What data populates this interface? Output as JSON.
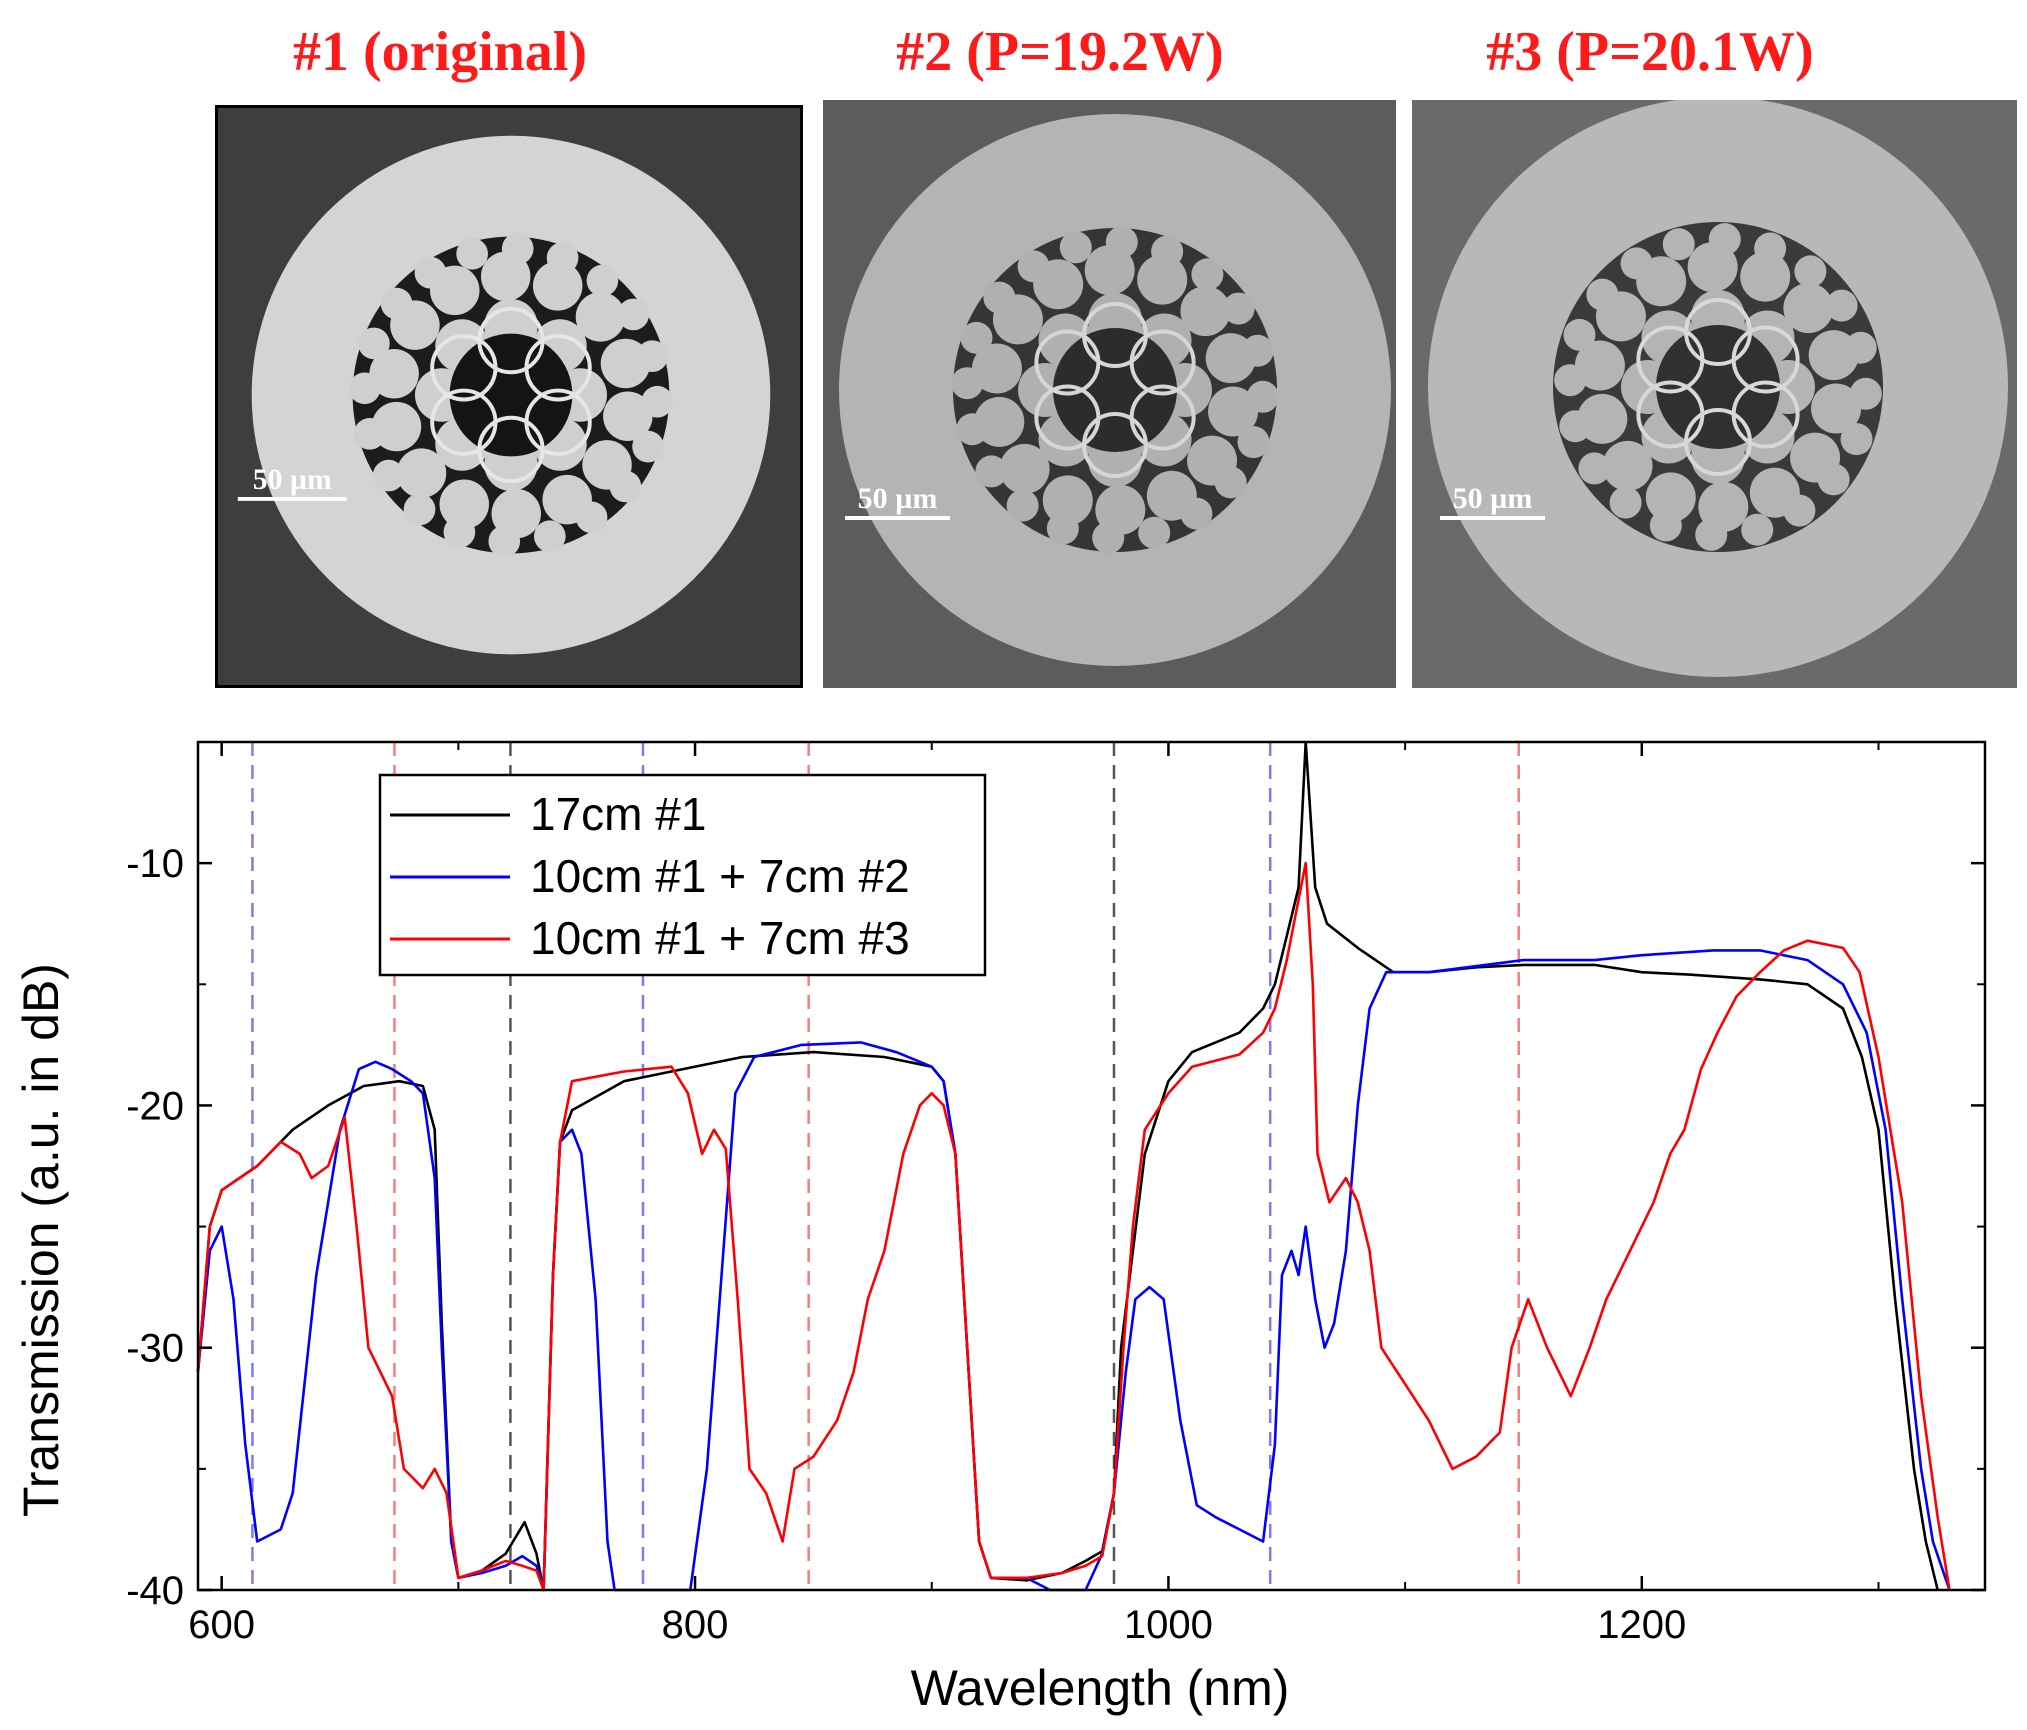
{
  "colors": {
    "title_red": "#ff1a1a",
    "black_series": "#000000",
    "blue_series": "#0000ff",
    "red_series": "#ff0000",
    "dash_blue": "#7a7aff",
    "dash_red": "#ff7a7a",
    "dash_gray": "#555555"
  },
  "panels": [
    {
      "title": "#1 (original)",
      "scalebar": "50 µm",
      "micrograph_icon": "fiber-cross-section-icon"
    },
    {
      "title": "#2 (P=19.2W)",
      "scalebar": "50 µm",
      "micrograph_icon": "fiber-cross-section-icon"
    },
    {
      "title": "#3 (P=20.1W)",
      "scalebar": "50 µm",
      "micrograph_icon": "fiber-cross-section-icon"
    }
  ],
  "chart_data": {
    "type": "line",
    "title": "",
    "xlabel": "Wavelength (nm)",
    "ylabel": "Transmission (a.u. in dB)",
    "xlim": [
      590,
      1345
    ],
    "ylim": [
      -40,
      -5
    ],
    "x_ticks": [
      600,
      800,
      1000,
      1200
    ],
    "y_ticks": [
      -10,
      -20,
      -30,
      -40
    ],
    "grid": false,
    "legend_position": "top-left",
    "legend": [
      "17cm #1",
      "10cm #1 + 7cm #2",
      "10cm #1 + 7cm #3"
    ],
    "reference_lines": [
      {
        "x": 613,
        "color": "blue"
      },
      {
        "x": 778,
        "color": "blue"
      },
      {
        "x": 1043,
        "color": "blue"
      },
      {
        "x": 673,
        "color": "red"
      },
      {
        "x": 848,
        "color": "red"
      },
      {
        "x": 1148,
        "color": "red"
      },
      {
        "x": 722,
        "color": "gray"
      },
      {
        "x": 977,
        "color": "gray"
      }
    ],
    "series": [
      {
        "name": "17cm #1",
        "color": "black",
        "points": [
          [
            590,
            -31
          ],
          [
            595,
            -25
          ],
          [
            600,
            -23.5
          ],
          [
            615,
            -22.5
          ],
          [
            630,
            -21
          ],
          [
            645,
            -20
          ],
          [
            660,
            -19.2
          ],
          [
            675,
            -19
          ],
          [
            685,
            -19.2
          ],
          [
            690,
            -21
          ],
          [
            693,
            -29
          ],
          [
            697,
            -38
          ],
          [
            700,
            -39.5
          ],
          [
            710,
            -39.2
          ],
          [
            720,
            -38.5
          ],
          [
            728,
            -37.2
          ],
          [
            733,
            -38.5
          ],
          [
            736,
            -40
          ],
          [
            740,
            -27
          ],
          [
            743,
            -21.5
          ],
          [
            748,
            -20.2
          ],
          [
            770,
            -19
          ],
          [
            790,
            -18.6
          ],
          [
            820,
            -18
          ],
          [
            850,
            -17.8
          ],
          [
            880,
            -18
          ],
          [
            900,
            -18.4
          ],
          [
            905,
            -19
          ],
          [
            910,
            -22
          ],
          [
            915,
            -30
          ],
          [
            920,
            -38
          ],
          [
            925,
            -39.5
          ],
          [
            940,
            -39.6
          ],
          [
            955,
            -39.3
          ],
          [
            965,
            -38.8
          ],
          [
            972,
            -38.4
          ],
          [
            977,
            -36
          ],
          [
            980,
            -30
          ],
          [
            985,
            -26
          ],
          [
            990,
            -22
          ],
          [
            1000,
            -19
          ],
          [
            1010,
            -17.8
          ],
          [
            1030,
            -17
          ],
          [
            1040,
            -16
          ],
          [
            1045,
            -15
          ],
          [
            1050,
            -13
          ],
          [
            1055,
            -11
          ],
          [
            1058,
            -5
          ],
          [
            1062,
            -11
          ],
          [
            1067,
            -12.5
          ],
          [
            1080,
            -13.5
          ],
          [
            1095,
            -14.5
          ],
          [
            1110,
            -14.5
          ],
          [
            1130,
            -14.3
          ],
          [
            1150,
            -14.2
          ],
          [
            1180,
            -14.2
          ],
          [
            1200,
            -14.5
          ],
          [
            1220,
            -14.6
          ],
          [
            1250,
            -14.8
          ],
          [
            1270,
            -15
          ],
          [
            1285,
            -16
          ],
          [
            1293,
            -18
          ],
          [
            1300,
            -21
          ],
          [
            1307,
            -28
          ],
          [
            1315,
            -35
          ],
          [
            1320,
            -38
          ],
          [
            1325,
            -40
          ]
        ]
      },
      {
        "name": "10cm #1 + 7cm #2",
        "color": "blue",
        "points": [
          [
            590,
            -31
          ],
          [
            595,
            -26
          ],
          [
            600,
            -25
          ],
          [
            605,
            -28
          ],
          [
            610,
            -34
          ],
          [
            615,
            -38
          ],
          [
            625,
            -37.5
          ],
          [
            630,
            -36
          ],
          [
            640,
            -27
          ],
          [
            650,
            -21
          ],
          [
            658,
            -18.5
          ],
          [
            665,
            -18.2
          ],
          [
            672,
            -18.5
          ],
          [
            680,
            -19
          ],
          [
            685,
            -19.5
          ],
          [
            690,
            -23
          ],
          [
            693,
            -30
          ],
          [
            697,
            -38
          ],
          [
            700,
            -39.5
          ],
          [
            710,
            -39.3
          ],
          [
            720,
            -39
          ],
          [
            727,
            -38.6
          ],
          [
            733,
            -39
          ],
          [
            736,
            -40
          ],
          [
            740,
            -27
          ],
          [
            743,
            -21.5
          ],
          [
            748,
            -21
          ],
          [
            752,
            -22
          ],
          [
            758,
            -28
          ],
          [
            763,
            -38
          ],
          [
            766,
            -40
          ],
          [
            798,
            -40
          ],
          [
            805,
            -35
          ],
          [
            812,
            -26
          ],
          [
            817,
            -19.5
          ],
          [
            825,
            -18
          ],
          [
            845,
            -17.5
          ],
          [
            870,
            -17.4
          ],
          [
            885,
            -17.8
          ],
          [
            900,
            -18.4
          ],
          [
            905,
            -19
          ],
          [
            910,
            -22
          ],
          [
            915,
            -30
          ],
          [
            920,
            -38
          ],
          [
            925,
            -39.5
          ],
          [
            940,
            -39.5
          ],
          [
            950,
            -40
          ],
          [
            965,
            -40
          ],
          [
            972,
            -38.5
          ],
          [
            977,
            -36
          ],
          [
            982,
            -31
          ],
          [
            986,
            -28
          ],
          [
            992,
            -27.5
          ],
          [
            998,
            -28
          ],
          [
            1005,
            -33
          ],
          [
            1012,
            -36.5
          ],
          [
            1020,
            -37
          ],
          [
            1030,
            -37.5
          ],
          [
            1040,
            -38
          ],
          [
            1045,
            -34
          ],
          [
            1048,
            -27
          ],
          [
            1052,
            -26
          ],
          [
            1055,
            -27
          ],
          [
            1058,
            -25
          ],
          [
            1062,
            -28
          ],
          [
            1066,
            -30
          ],
          [
            1070,
            -29
          ],
          [
            1075,
            -26
          ],
          [
            1080,
            -20
          ],
          [
            1085,
            -16
          ],
          [
            1092,
            -14.5
          ],
          [
            1110,
            -14.5
          ],
          [
            1150,
            -14
          ],
          [
            1180,
            -14
          ],
          [
            1200,
            -13.8
          ],
          [
            1230,
            -13.6
          ],
          [
            1250,
            -13.6
          ],
          [
            1270,
            -14
          ],
          [
            1285,
            -15
          ],
          [
            1295,
            -17
          ],
          [
            1303,
            -21
          ],
          [
            1310,
            -28
          ],
          [
            1318,
            -35
          ],
          [
            1323,
            -38
          ],
          [
            1330,
            -40
          ]
        ]
      },
      {
        "name": "10cm #1 + 7cm #3",
        "color": "red",
        "points": [
          [
            590,
            -31
          ],
          [
            595,
            -25
          ],
          [
            600,
            -23.5
          ],
          [
            615,
            -22.5
          ],
          [
            625,
            -21.5
          ],
          [
            633,
            -22
          ],
          [
            638,
            -23
          ],
          [
            645,
            -22.5
          ],
          [
            652,
            -20.5
          ],
          [
            657,
            -25
          ],
          [
            662,
            -30
          ],
          [
            667,
            -31
          ],
          [
            672,
            -32
          ],
          [
            677,
            -35
          ],
          [
            685,
            -35.8
          ],
          [
            690,
            -35
          ],
          [
            695,
            -36
          ],
          [
            700,
            -39.5
          ],
          [
            710,
            -39.2
          ],
          [
            720,
            -38.8
          ],
          [
            727,
            -39
          ],
          [
            733,
            -39.2
          ],
          [
            736,
            -40
          ],
          [
            740,
            -27
          ],
          [
            743,
            -21.5
          ],
          [
            748,
            -19
          ],
          [
            770,
            -18.6
          ],
          [
            780,
            -18.5
          ],
          [
            790,
            -18.4
          ],
          [
            797,
            -19.5
          ],
          [
            803,
            -22
          ],
          [
            808,
            -21
          ],
          [
            813,
            -21.8
          ],
          [
            818,
            -28
          ],
          [
            823,
            -35
          ],
          [
            830,
            -36
          ],
          [
            837,
            -38
          ],
          [
            842,
            -35
          ],
          [
            850,
            -34.5
          ],
          [
            860,
            -33
          ],
          [
            867,
            -31
          ],
          [
            873,
            -28
          ],
          [
            880,
            -26
          ],
          [
            888,
            -22
          ],
          [
            895,
            -20
          ],
          [
            900,
            -19.5
          ],
          [
            905,
            -20
          ],
          [
            910,
            -22
          ],
          [
            915,
            -30
          ],
          [
            920,
            -38
          ],
          [
            925,
            -39.5
          ],
          [
            940,
            -39.5
          ],
          [
            955,
            -39.3
          ],
          [
            965,
            -39
          ],
          [
            972,
            -38.6
          ],
          [
            977,
            -36
          ],
          [
            981,
            -30
          ],
          [
            985,
            -25
          ],
          [
            990,
            -21
          ],
          [
            1000,
            -19.5
          ],
          [
            1010,
            -18.4
          ],
          [
            1030,
            -17.9
          ],
          [
            1040,
            -17
          ],
          [
            1045,
            -16
          ],
          [
            1050,
            -14
          ],
          [
            1054,
            -12
          ],
          [
            1058,
            -10
          ],
          [
            1061,
            -15
          ],
          [
            1063,
            -22
          ],
          [
            1068,
            -24
          ],
          [
            1075,
            -23
          ],
          [
            1080,
            -24
          ],
          [
            1085,
            -26
          ],
          [
            1090,
            -30
          ],
          [
            1100,
            -31.5
          ],
          [
            1110,
            -33
          ],
          [
            1120,
            -35
          ],
          [
            1130,
            -34.5
          ],
          [
            1140,
            -33.5
          ],
          [
            1145,
            -30
          ],
          [
            1152,
            -28
          ],
          [
            1160,
            -30
          ],
          [
            1170,
            -32
          ],
          [
            1178,
            -30
          ],
          [
            1185,
            -28
          ],
          [
            1195,
            -26
          ],
          [
            1205,
            -24
          ],
          [
            1212,
            -22
          ],
          [
            1218,
            -21
          ],
          [
            1225,
            -18.5
          ],
          [
            1232,
            -17
          ],
          [
            1240,
            -15.5
          ],
          [
            1250,
            -14.5
          ],
          [
            1260,
            -13.6
          ],
          [
            1270,
            -13.2
          ],
          [
            1285,
            -13.5
          ],
          [
            1292,
            -14.5
          ],
          [
            1300,
            -18
          ],
          [
            1310,
            -24
          ],
          [
            1318,
            -32
          ],
          [
            1325,
            -37
          ],
          [
            1330,
            -40
          ]
        ]
      }
    ]
  }
}
